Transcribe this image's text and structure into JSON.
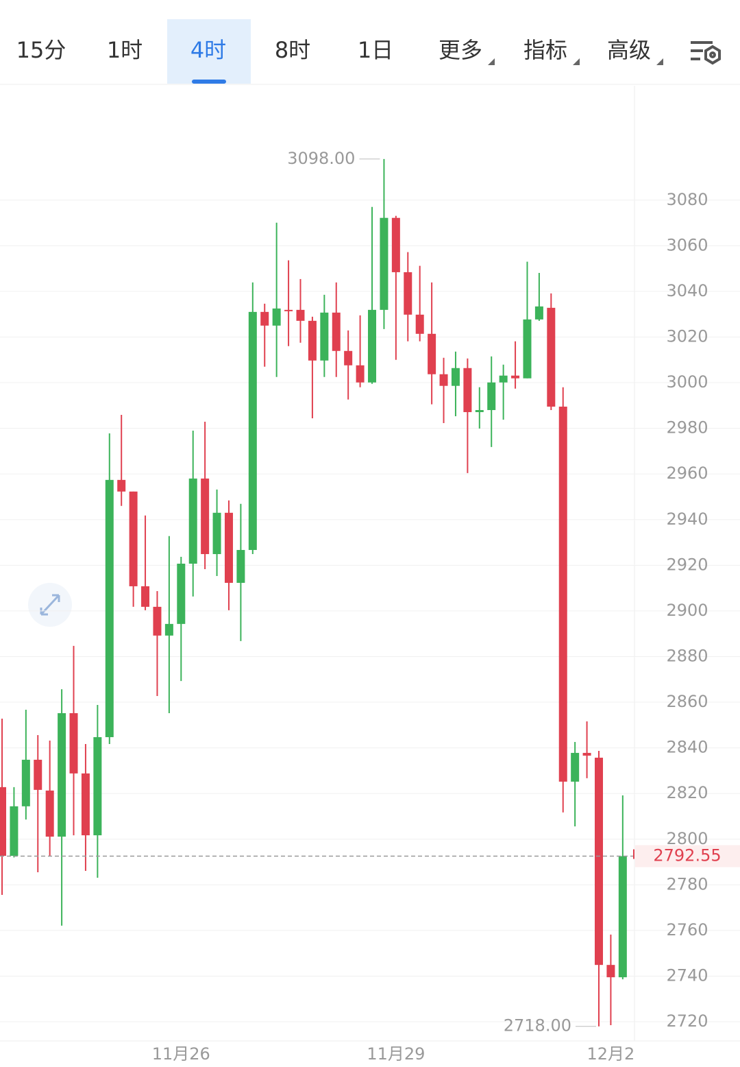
{
  "tabs": [
    "15分",
    "1时",
    "4时",
    "8时",
    "1日",
    "更多",
    "指标",
    "高级"
  ],
  "chart_data": {
    "type": "candlestick",
    "categories": [
      null,
      null,
      null,
      null,
      null,
      null,
      null,
      null,
      null,
      null,
      null,
      null,
      null,
      null,
      null,
      "11月26",
      null,
      null,
      null,
      null,
      null,
      null,
      null,
      null,
      null,
      null,
      null,
      null,
      null,
      null,
      null,
      null,
      null,
      "11月29",
      null,
      null,
      null,
      null,
      null,
      null,
      null,
      null,
      null,
      null,
      null,
      null,
      null,
      null,
      null,
      null,
      null,
      "12月2",
      null
    ],
    "open": [
      2822.8,
      2792.7,
      2814.4,
      2834.8,
      2821.3,
      2801.1,
      2855.2,
      2828.8,
      2801.7,
      2844.7,
      2957.4,
      2952.3,
      2910.8,
      2901.8,
      2889.2,
      2894.3,
      2920.7,
      2958,
      2924.9,
      2943,
      2912.3,
      2926.7,
      3031,
      3025,
      3031.9,
      3031.9,
      3027.1,
      3009.7,
      3030.7,
      3013.9,
      3007.6,
      3000.1,
      3031.9,
      3072.2,
      3048.4,
      3029.8,
      3021.4,
      3003.7,
      2998.6,
      3006.4,
      2987.1,
      2988,
      3000.1,
      3003.1,
      3001.9,
      3027.7,
      3032.8,
      2989.5,
      2825.2,
      2837.8,
      2835.7,
      2744.9,
      2739.5
    ],
    "high": [
      2852.8,
      2822.8,
      2856.7,
      2845.6,
      2843.2,
      2865.7,
      2884.7,
      2841.7,
      2858.8,
      2977.8,
      2985.9,
      2952.3,
      2941.8,
      2908.7,
      2932.8,
      2923.7,
      2979,
      2982.9,
      2953.2,
      2948.4,
      2946.9,
      3043.9,
      3034.6,
      3070.1,
      3053.6,
      3045.4,
      3028.9,
      3038.5,
      3043.9,
      3022.9,
      3029.5,
      3077,
      3098,
      3073.1,
      3057.2,
      3051.2,
      3043.9,
      3010.9,
      3013.6,
      3010.6,
      2998,
      3011.5,
      3007.9,
      3018.1,
      3053,
      3048.1,
      3039.1,
      2998,
      2842.6,
      2851.6,
      2838.7,
      2758.2,
      2819.2
    ],
    "low": [
      2775.6,
      2792,
      2808.6,
      2785.5,
      2792.7,
      2762.1,
      2801.7,
      2786.1,
      2783.1,
      2841.7,
      2946,
      2901.8,
      2900.3,
      2862.7,
      2855.2,
      2869.3,
      2906.3,
      2918.3,
      2915.3,
      2900.3,
      2886.8,
      2924.9,
      3007,
      3002.5,
      3016,
      3017.5,
      2984.4,
      3002.5,
      3002.5,
      2992.6,
      2998,
      2999.5,
      3023.5,
      3010,
      3018.1,
      3018.1,
      2990.5,
      2982.3,
      2985.3,
      2960.4,
      2979.9,
      2971.8,
      2983.8,
      2997.4,
      3001.9,
      3027.1,
      2988,
      2811.7,
      2805.6,
      2826.7,
      2718,
      2718.5,
      2738.6
    ],
    "close": [
      2792.7,
      2814.4,
      2834.8,
      2821.6,
      2801.1,
      2855.2,
      2828.8,
      2801.7,
      2844.7,
      2957.4,
      2952.3,
      2910.8,
      2901.8,
      2889.2,
      2894.3,
      2920.7,
      2958,
      2924.9,
      2943,
      2912.3,
      2926.7,
      3031,
      3025,
      3032.5,
      3031.3,
      3027.1,
      3009.7,
      3030.7,
      3013.9,
      3007.6,
      3000.1,
      3031.9,
      3072.2,
      3048.4,
      3029.8,
      3021.4,
      3003.7,
      2998.6,
      3006.4,
      2987.1,
      2988,
      3000.1,
      3003.1,
      3001.9,
      3027.7,
      3033.4,
      2989.5,
      2825.2,
      2837.8,
      2836.6,
      2744.9,
      2739.5,
      2792.55
    ],
    "up_color": "#3cb35a",
    "down_color": "#e0404f",
    "ylim": [
      2711.6,
      3130.1
    ],
    "yticks": [
      2720,
      2740,
      2760,
      2780,
      2800,
      2820,
      2840,
      2860,
      2880,
      2900,
      2920,
      2940,
      2960,
      2980,
      3000,
      3020,
      3040,
      3060,
      3080
    ],
    "grid": true,
    "high_marker": {
      "value": 3098,
      "label": "3098.00"
    },
    "low_marker": {
      "value": 2718,
      "label": "2718.00"
    },
    "last_price": {
      "value": 2792.55,
      "label": "2792.55"
    }
  }
}
